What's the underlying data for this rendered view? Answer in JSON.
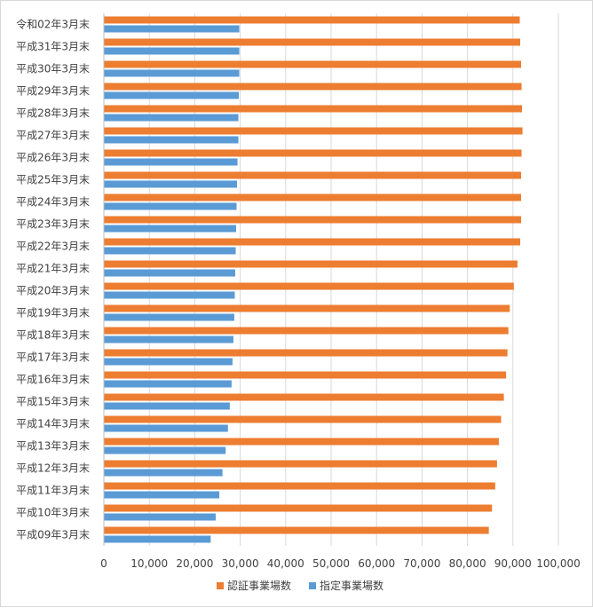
{
  "chart_data": {
    "type": "bar",
    "orientation": "horizontal",
    "categories": [
      "令和02年3月末",
      "平成31年3月末",
      "平成30年3月末",
      "平成29年3月末",
      "平成28年3月末",
      "平成27年3月末",
      "平成26年3月末",
      "平成25年3月末",
      "平成24年3月末",
      "平成23年3月末",
      "平成22年3月末",
      "平成21年3月末",
      "平成20年3月末",
      "平成19年3月末",
      "平成18年3月末",
      "平成17年3月末",
      "平成16年3月末",
      "平成15年3月末",
      "平成14年3月末",
      "平成13年3月末",
      "平成12年3月末",
      "平成11年3月末",
      "平成10年3月末",
      "平成09年3月末"
    ],
    "series": [
      {
        "name": "認証事業場数",
        "color": "#ed7d31",
        "values": [
          91500,
          91600,
          91800,
          91900,
          92000,
          92100,
          91900,
          91800,
          91800,
          91800,
          91600,
          91000,
          90200,
          89300,
          89000,
          88800,
          88500,
          88000,
          87400,
          86900,
          86500,
          86100,
          85400,
          84700
        ]
      },
      {
        "name": "指定事業場数",
        "color": "#5b9bd5",
        "values": [
          29800,
          29800,
          29800,
          29700,
          29600,
          29600,
          29400,
          29300,
          29200,
          29100,
          29000,
          28900,
          28800,
          28700,
          28500,
          28300,
          28100,
          27700,
          27300,
          26800,
          26100,
          25400,
          24600,
          23500
        ]
      }
    ],
    "xlim": [
      0,
      100000
    ],
    "xticks": [
      "0",
      "10,000",
      "20,000",
      "30,000",
      "40,000",
      "50,000",
      "60,000",
      "70,000",
      "80,000",
      "90,000",
      "100,000"
    ],
    "grid": true,
    "legend_position": "bottom",
    "title": "",
    "xlabel": "",
    "ylabel": ""
  }
}
